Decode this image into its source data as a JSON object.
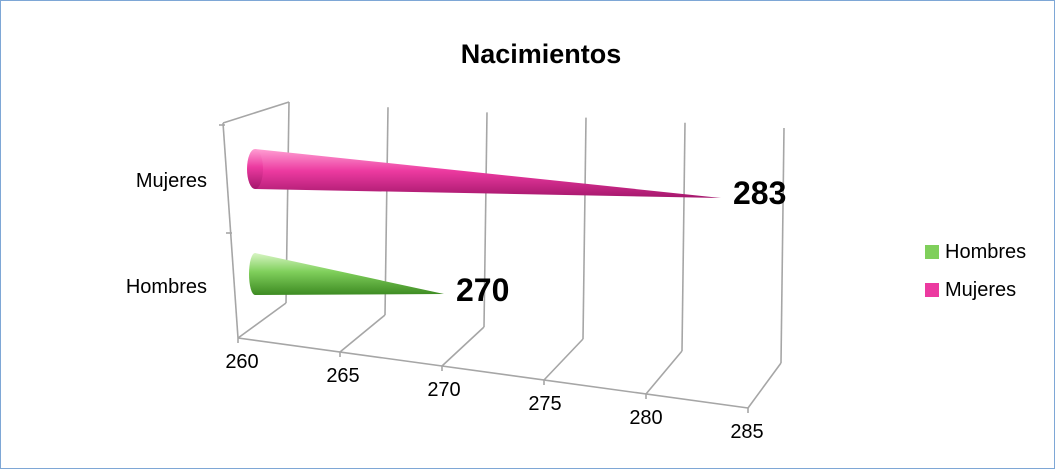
{
  "chart_data": {
    "type": "bar",
    "title": "Nacimientos",
    "categories": [
      "Hombres",
      "Mujeres"
    ],
    "values": [
      270,
      283
    ],
    "data_labels": [
      "270",
      "283"
    ],
    "xlim": [
      260,
      285
    ],
    "ticks": [
      "260",
      "265",
      "270",
      "275",
      "280",
      "285"
    ],
    "tick_values": [
      260,
      265,
      270,
      275,
      280,
      285
    ],
    "orientation": "horizontal",
    "style": "3d-cone",
    "grid": true,
    "legend_position": "right",
    "series": [
      {
        "name": "Hombres",
        "value": 270,
        "color": "#7fcf5b"
      },
      {
        "name": "Mujeres",
        "value": 283,
        "color": "#ec3aa0"
      }
    ]
  }
}
